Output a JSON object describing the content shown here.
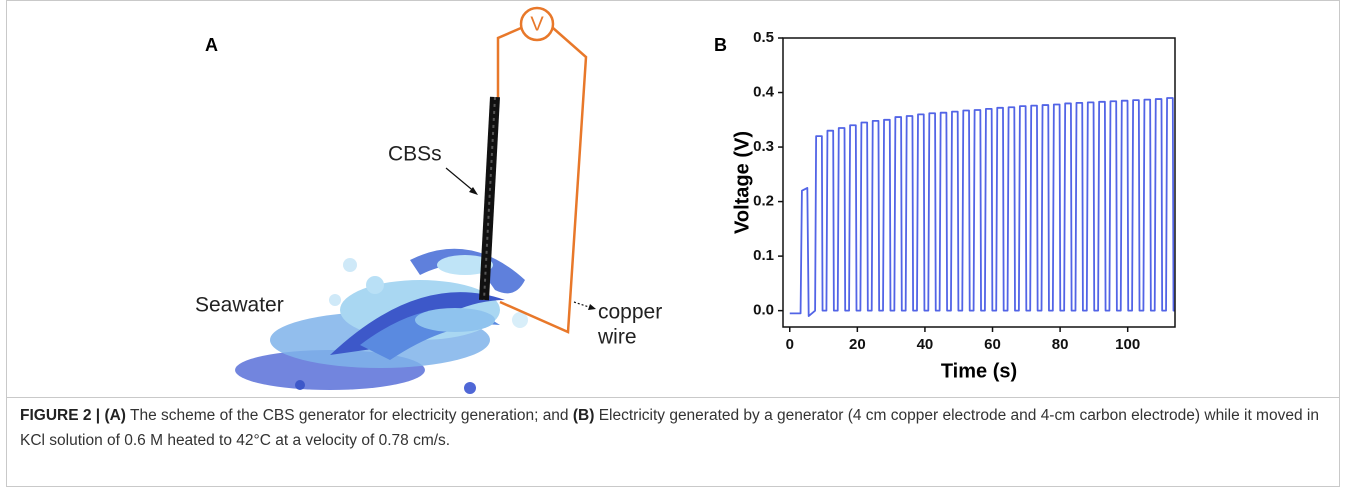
{
  "panel_a": {
    "panel_label": "A",
    "meter": "V",
    "rod_label": "CBSs",
    "water_label": "Seawater",
    "wire_label_1": "copper",
    "wire_label_2": "wire"
  },
  "chart_data": {
    "type": "line",
    "panel_label": "B",
    "xlabel": "Time (s)",
    "ylabel": "Voltage (V)",
    "xlim": [
      -2,
      114
    ],
    "ylim": [
      -0.03,
      0.5
    ],
    "xticks": [
      0,
      20,
      40,
      60,
      80,
      100
    ],
    "yticks": [
      {
        "value": 0,
        "label": "0.0"
      },
      0.1,
      0.2,
      0.3,
      0.4,
      0.5
    ],
    "x": [
      0,
      3.2,
      3.6,
      5.2,
      5.6,
      7.5,
      7.8,
      9.5,
      9.7,
      10.85,
      11.15,
      12.85,
      13.05,
      14.2,
      14.5,
      16.2,
      16.4,
      17.55,
      17.85,
      19.55,
      19.75,
      20.9,
      21.2,
      22.9,
      23.1,
      24.25,
      24.55,
      26.25,
      26.45,
      27.6,
      27.9,
      29.6,
      29.8,
      30.95,
      31.25,
      32.95,
      33.15,
      34.3,
      34.6,
      36.3,
      36.5,
      37.65,
      37.95,
      39.65,
      39.85,
      41,
      41.3,
      43,
      43.2,
      44.35,
      44.65,
      46.35,
      46.55,
      47.7,
      48,
      49.7,
      49.9,
      51.05,
      51.35,
      53.05,
      53.25,
      54.4,
      54.7,
      56.4,
      56.6,
      57.75,
      58.05,
      59.75,
      59.95,
      61.1,
      61.4,
      63.1,
      63.3,
      64.45,
      64.75,
      66.45,
      66.65,
      67.8,
      68.1,
      69.8,
      70,
      71.15,
      71.45,
      73.15,
      73.35,
      74.5,
      74.8,
      76.5,
      76.7,
      77.85,
      78.15,
      79.85,
      80.05,
      81.2,
      81.5,
      83.2,
      83.4,
      84.55,
      84.85,
      86.55,
      86.75,
      87.9,
      88.2,
      89.9,
      90.1,
      91.25,
      91.55,
      93.25,
      93.45,
      94.6,
      94.9,
      96.6,
      96.8,
      97.95,
      98.25,
      99.95,
      100.15,
      101.3,
      101.6,
      103.3,
      103.5,
      104.65,
      104.95,
      106.65,
      106.85,
      108,
      108.3,
      110,
      110.2,
      111.35,
      111.65,
      113.35,
      113.55,
      114
    ],
    "series": [
      {
        "color": "#5264e6",
        "values": [
          -0.005,
          -0.005,
          0.22,
          0.225,
          -0.01,
          0,
          0.32,
          0.32,
          0,
          0,
          0.33,
          0.33,
          0,
          0,
          0.335,
          0.335,
          0,
          0,
          0.34,
          0.34,
          0,
          0,
          0.345,
          0.345,
          0,
          0,
          0.348,
          0.348,
          0,
          0,
          0.35,
          0.35,
          0,
          0,
          0.355,
          0.355,
          0,
          0,
          0.357,
          0.357,
          0,
          0,
          0.36,
          0.36,
          0,
          0,
          0.362,
          0.362,
          0,
          0,
          0.363,
          0.363,
          0,
          0,
          0.365,
          0.365,
          0,
          0,
          0.367,
          0.367,
          0,
          0,
          0.368,
          0.368,
          0,
          0,
          0.37,
          0.37,
          0,
          0,
          0.372,
          0.372,
          0,
          0,
          0.373,
          0.373,
          0,
          0,
          0.375,
          0.375,
          0,
          0,
          0.376,
          0.376,
          0,
          0,
          0.377,
          0.377,
          0,
          0,
          0.378,
          0.378,
          0,
          0,
          0.38,
          0.38,
          0,
          0,
          0.381,
          0.381,
          0,
          0,
          0.382,
          0.382,
          0,
          0,
          0.383,
          0.383,
          0,
          0,
          0.384,
          0.384,
          0,
          0,
          0.385,
          0.385,
          0,
          0,
          0.386,
          0.386,
          0,
          0,
          0.387,
          0.387,
          0,
          0,
          0.388,
          0.388,
          0,
          0,
          0.39,
          0.39,
          0,
          0
        ]
      }
    ]
  },
  "caption": {
    "label": "FIGURE 2 |",
    "a_tag": "(A)",
    "a_text": " The scheme of the CBS generator for electricity generation; and ",
    "b_tag": "(B)",
    "b_text": " Electricity generated by a generator (4 cm copper electrode and 4-cm carbon electrode) while it moved in KCl solution of 0.6 M heated to 42°C at a velocity of 0.78 cm/s."
  }
}
